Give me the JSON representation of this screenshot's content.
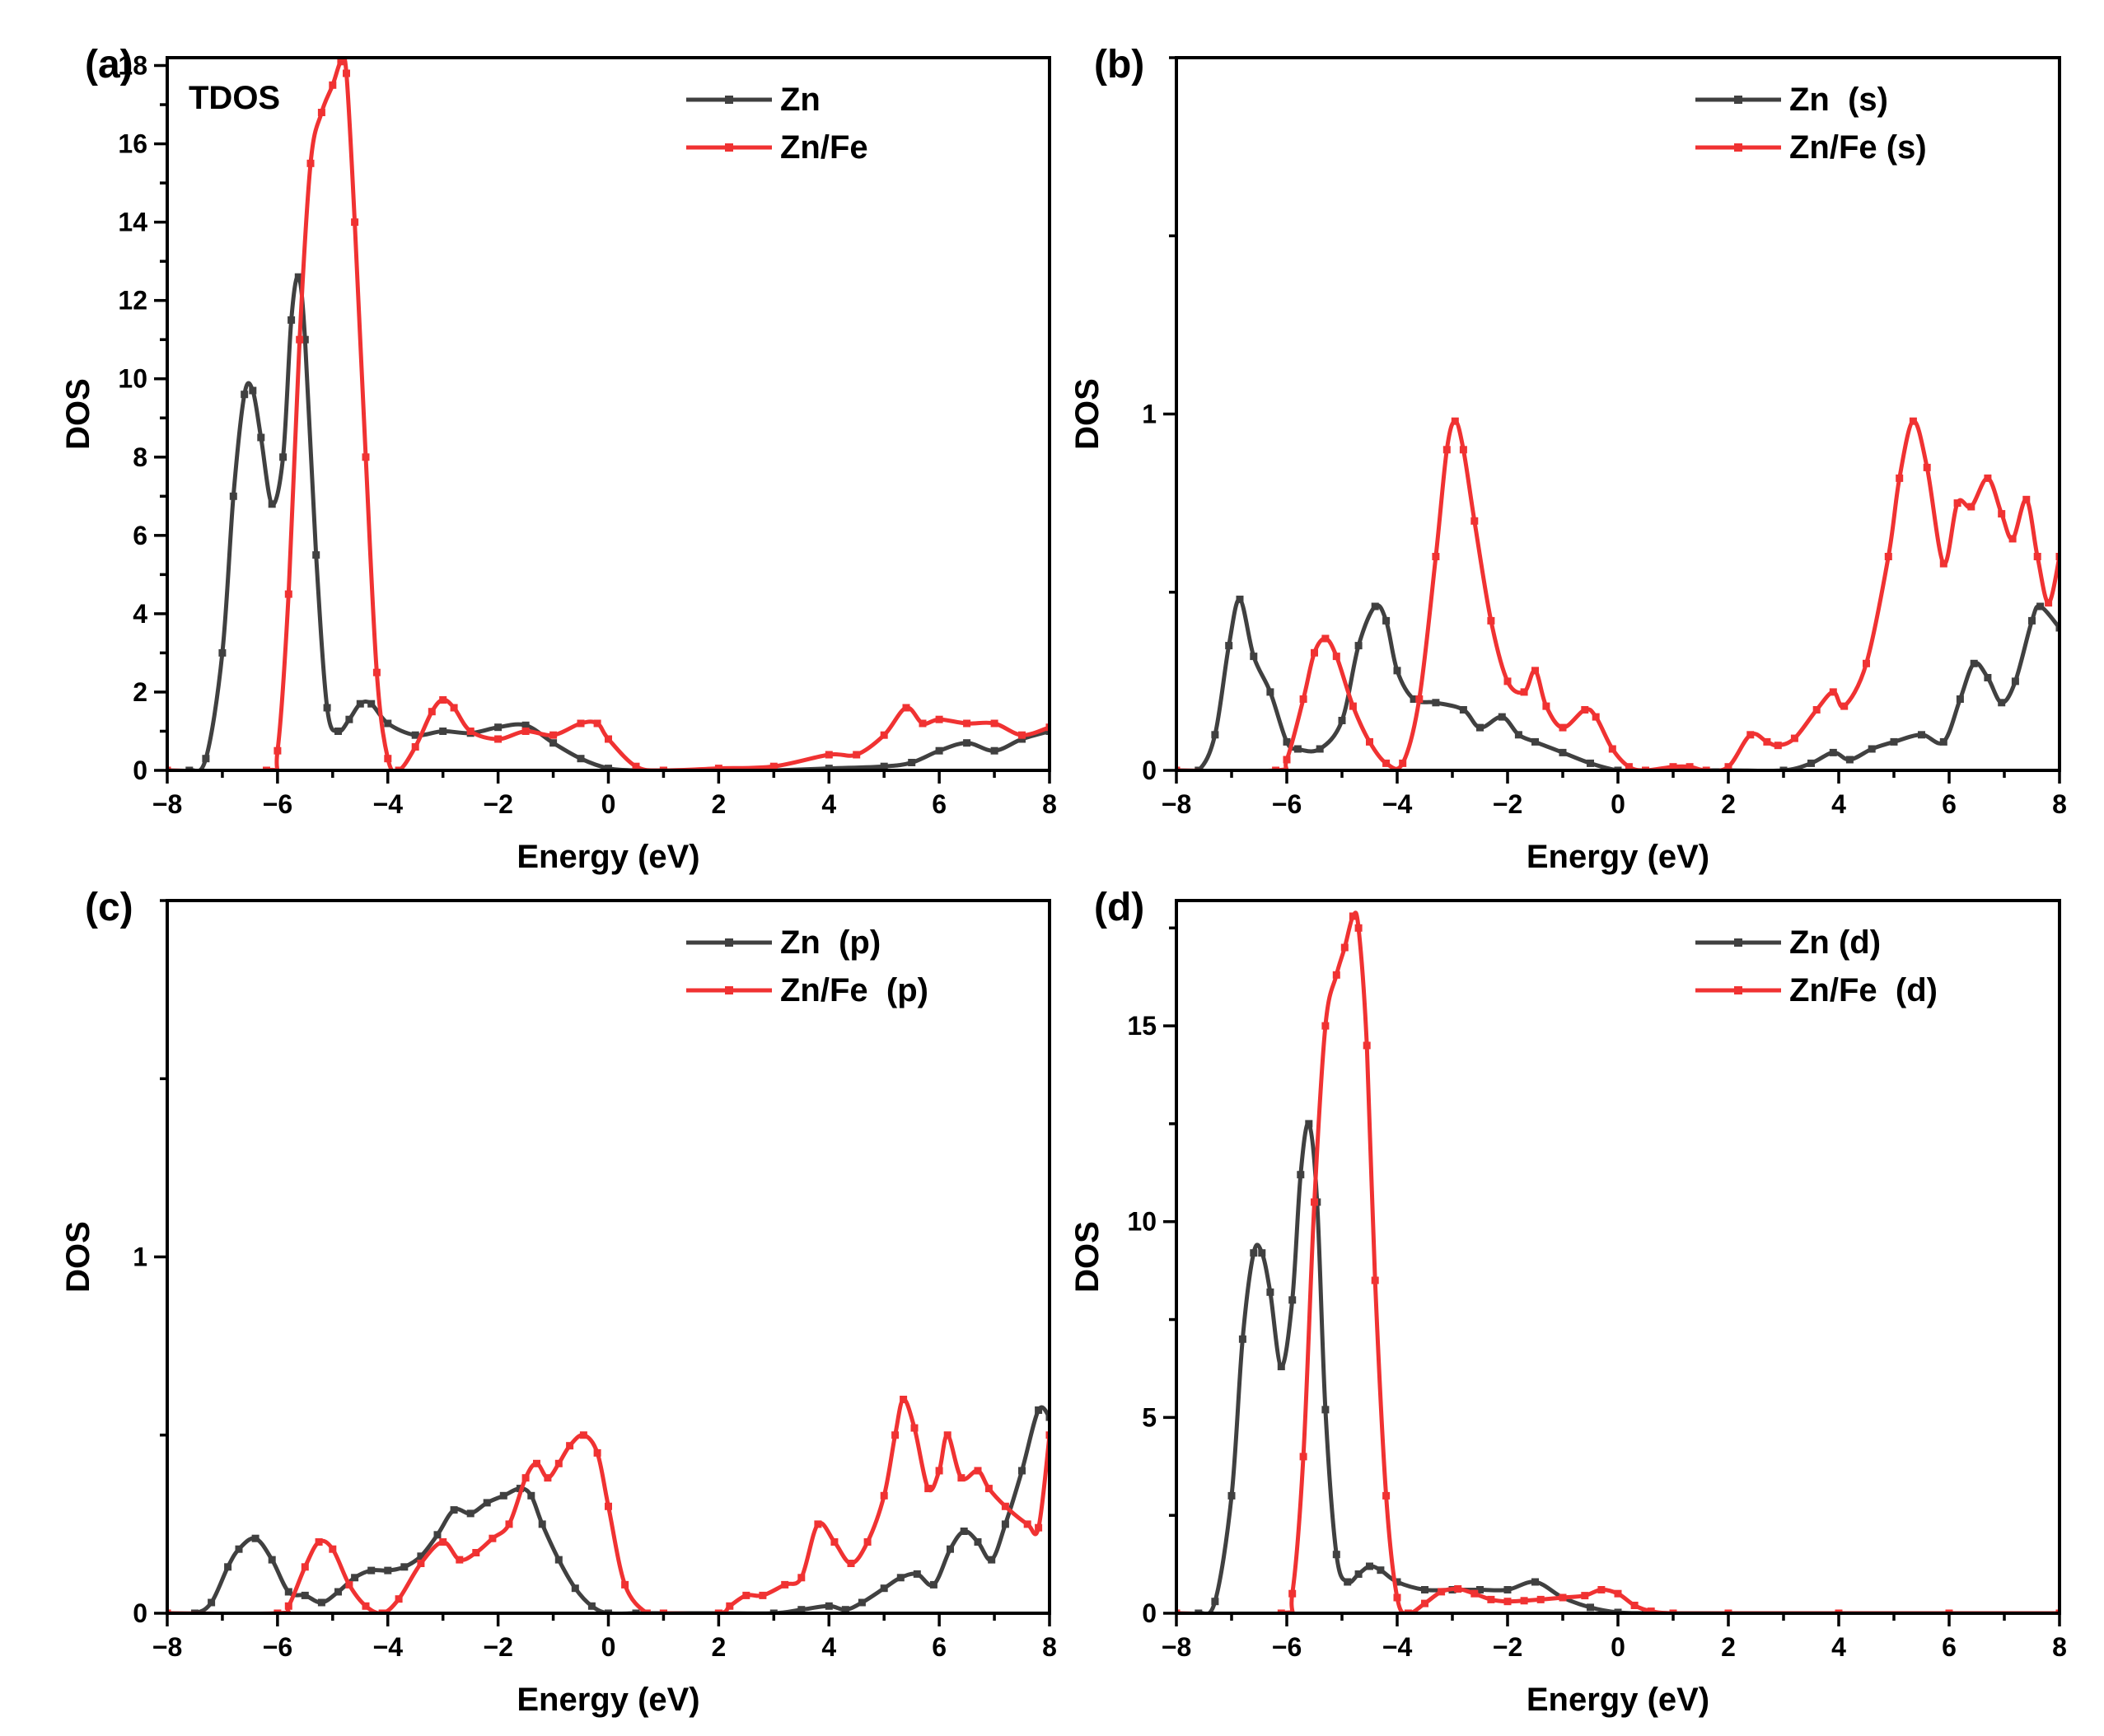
{
  "chart_data": [
    {
      "id": "a",
      "type": "line",
      "panel_label": "(a)",
      "inner_label": "TDOS",
      "xlabel": "Energy (eV)",
      "ylabel": "DOS",
      "xlim": [
        -8,
        8
      ],
      "ylim": [
        0,
        18.2
      ],
      "xticks": [
        -8,
        -6,
        -4,
        -2,
        0,
        2,
        4,
        6,
        8
      ],
      "yticks": [
        0,
        2,
        4,
        6,
        8,
        10,
        12,
        14,
        16,
        18
      ],
      "ytick_labels": [
        "0",
        "2",
        "4",
        "6",
        "8",
        "10",
        "12",
        "14",
        "16",
        "18"
      ],
      "legend_position": "top-right",
      "series": [
        {
          "name": "Zn",
          "color": "#404040",
          "x": [
            -8,
            -7.6,
            -7.3,
            -7.0,
            -6.8,
            -6.6,
            -6.45,
            -6.3,
            -6.1,
            -5.9,
            -5.75,
            -5.62,
            -5.5,
            -5.3,
            -5.1,
            -4.9,
            -4.7,
            -4.5,
            -4.3,
            -4.0,
            -3.5,
            -3.0,
            -2.5,
            -2.0,
            -1.5,
            -1.0,
            -0.5,
            0,
            0.5,
            1,
            2,
            3,
            4,
            5,
            5.5,
            6,
            6.5,
            7,
            7.5,
            8
          ],
          "y": [
            0,
            0,
            0.3,
            3.0,
            7.0,
            9.6,
            9.7,
            8.5,
            6.8,
            8.0,
            11.5,
            12.6,
            11.0,
            5.5,
            1.6,
            1.0,
            1.3,
            1.7,
            1.7,
            1.2,
            0.9,
            1.0,
            0.95,
            1.1,
            1.15,
            0.7,
            0.3,
            0.05,
            0,
            0,
            0,
            0,
            0.05,
            0.1,
            0.2,
            0.5,
            0.7,
            0.5,
            0.8,
            1.0
          ]
        },
        {
          "name": "Zn/Fe",
          "color": "#f03232",
          "x": [
            -8,
            -6.2,
            -6.0,
            -5.8,
            -5.6,
            -5.4,
            -5.2,
            -5.0,
            -4.85,
            -4.75,
            -4.6,
            -4.4,
            -4.2,
            -4.0,
            -3.8,
            -3.5,
            -3.2,
            -3.0,
            -2.8,
            -2.5,
            -2.0,
            -1.5,
            -1.0,
            -0.5,
            -0.2,
            0,
            0.5,
            1,
            2,
            3,
            4,
            4.5,
            5.0,
            5.4,
            5.7,
            6.0,
            6.5,
            7.0,
            7.5,
            8
          ],
          "y": [
            0,
            0,
            0.5,
            4.5,
            11.0,
            15.5,
            16.8,
            17.5,
            18.1,
            17.8,
            14.0,
            8.0,
            2.5,
            0.3,
            0,
            0.6,
            1.5,
            1.8,
            1.6,
            1.0,
            0.8,
            1.0,
            0.9,
            1.2,
            1.2,
            0.8,
            0.1,
            0,
            0.05,
            0.1,
            0.4,
            0.4,
            0.9,
            1.6,
            1.2,
            1.3,
            1.2,
            1.2,
            0.9,
            1.1
          ]
        }
      ]
    },
    {
      "id": "b",
      "type": "line",
      "panel_label": "(b)",
      "inner_label": "",
      "xlabel": "Energy (eV)",
      "ylabel": "DOS",
      "xlim": [
        -8,
        8
      ],
      "ylim": [
        0,
        2.0
      ],
      "xticks": [
        -8,
        -6,
        -4,
        -2,
        0,
        2,
        4,
        6,
        8
      ],
      "yticks": [
        0,
        1
      ],
      "ytick_labels": [
        "0",
        "1"
      ],
      "legend_position": "top-right",
      "series": [
        {
          "name": "Zn  (s)",
          "color": "#404040",
          "x": [
            -8,
            -7.6,
            -7.3,
            -7.05,
            -6.85,
            -6.6,
            -6.3,
            -6.0,
            -5.8,
            -5.4,
            -5.0,
            -4.7,
            -4.4,
            -4.2,
            -4.0,
            -3.7,
            -3.3,
            -2.8,
            -2.5,
            -2.1,
            -1.8,
            -1.5,
            -1.0,
            -0.5,
            0,
            0.5,
            1,
            2,
            3,
            3.5,
            3.9,
            4.2,
            4.6,
            5.0,
            5.5,
            5.9,
            6.2,
            6.45,
            6.7,
            6.95,
            7.2,
            7.5,
            7.65,
            8
          ],
          "y": [
            0,
            0,
            0.1,
            0.35,
            0.48,
            0.32,
            0.22,
            0.08,
            0.06,
            0.06,
            0.14,
            0.35,
            0.46,
            0.42,
            0.28,
            0.2,
            0.19,
            0.17,
            0.12,
            0.15,
            0.1,
            0.08,
            0.05,
            0.02,
            0,
            0,
            0,
            0,
            0,
            0.02,
            0.05,
            0.03,
            0.06,
            0.08,
            0.1,
            0.08,
            0.2,
            0.3,
            0.26,
            0.19,
            0.25,
            0.42,
            0.46,
            0.4
          ]
        },
        {
          "name": "Zn/Fe (s)",
          "color": "#f03232",
          "x": [
            -8,
            -6.2,
            -6.0,
            -5.7,
            -5.5,
            -5.3,
            -5.1,
            -4.8,
            -4.5,
            -4.2,
            -3.9,
            -3.6,
            -3.3,
            -3.1,
            -2.95,
            -2.8,
            -2.6,
            -2.3,
            -2.0,
            -1.7,
            -1.5,
            -1.3,
            -1.0,
            -0.6,
            -0.4,
            -0.1,
            0.2,
            0.5,
            1.0,
            1.3,
            1.6,
            2.0,
            2.4,
            2.7,
            2.9,
            3.2,
            3.6,
            3.9,
            4.1,
            4.5,
            4.9,
            5.1,
            5.35,
            5.6,
            5.9,
            6.15,
            6.4,
            6.7,
            6.95,
            7.15,
            7.4,
            7.6,
            7.8,
            8
          ],
          "y": [
            0,
            0,
            0.03,
            0.2,
            0.33,
            0.37,
            0.32,
            0.18,
            0.08,
            0.02,
            0.02,
            0.2,
            0.6,
            0.9,
            0.98,
            0.9,
            0.7,
            0.42,
            0.25,
            0.22,
            0.28,
            0.18,
            0.12,
            0.17,
            0.15,
            0.06,
            0.01,
            0,
            0.01,
            0.01,
            0,
            0.01,
            0.1,
            0.08,
            0.07,
            0.09,
            0.17,
            0.22,
            0.18,
            0.3,
            0.6,
            0.82,
            0.98,
            0.85,
            0.58,
            0.75,
            0.74,
            0.82,
            0.72,
            0.65,
            0.76,
            0.6,
            0.47,
            0.6
          ]
        }
      ]
    },
    {
      "id": "c",
      "type": "line",
      "panel_label": "(c)",
      "inner_label": "",
      "xlabel": "Energy (eV)",
      "ylabel": "DOS",
      "xlim": [
        -8,
        8
      ],
      "ylim": [
        0,
        2.0
      ],
      "xticks": [
        -8,
        -6,
        -4,
        -2,
        0,
        2,
        4,
        6,
        8
      ],
      "yticks": [
        0,
        1
      ],
      "ytick_labels": [
        "0",
        "1"
      ],
      "legend_position": "top-right",
      "series": [
        {
          "name": "Zn  (p)",
          "color": "#404040",
          "x": [
            -8,
            -7.5,
            -7.2,
            -6.9,
            -6.7,
            -6.4,
            -6.1,
            -5.8,
            -5.5,
            -5.2,
            -4.9,
            -4.6,
            -4.3,
            -4.0,
            -3.7,
            -3.4,
            -3.1,
            -2.8,
            -2.5,
            -2.2,
            -1.9,
            -1.6,
            -1.4,
            -1.2,
            -0.9,
            -0.6,
            -0.3,
            0,
            0.5,
            1,
            2,
            3,
            3.5,
            4.0,
            4.3,
            4.6,
            5.0,
            5.3,
            5.6,
            5.9,
            6.2,
            6.45,
            6.7,
            6.95,
            7.2,
            7.5,
            7.8,
            8
          ],
          "y": [
            0,
            0,
            0.03,
            0.13,
            0.18,
            0.21,
            0.15,
            0.06,
            0.05,
            0.03,
            0.06,
            0.1,
            0.12,
            0.12,
            0.13,
            0.16,
            0.22,
            0.29,
            0.28,
            0.31,
            0.33,
            0.35,
            0.33,
            0.25,
            0.15,
            0.07,
            0.02,
            0,
            0,
            0,
            0,
            0,
            0.01,
            0.02,
            0.01,
            0.03,
            0.07,
            0.1,
            0.11,
            0.08,
            0.18,
            0.23,
            0.2,
            0.15,
            0.25,
            0.4,
            0.57,
            0.55
          ]
        },
        {
          "name": "Zn/Fe  (p)",
          "color": "#f03232",
          "x": [
            -8,
            -6.0,
            -5.8,
            -5.5,
            -5.25,
            -5.0,
            -4.7,
            -4.4,
            -4.1,
            -3.8,
            -3.4,
            -3.0,
            -2.7,
            -2.4,
            -2.1,
            -1.8,
            -1.5,
            -1.3,
            -1.1,
            -0.9,
            -0.7,
            -0.45,
            -0.2,
            0,
            0.3,
            0.7,
            1.0,
            2.0,
            2.2,
            2.5,
            2.8,
            3.2,
            3.5,
            3.8,
            4.1,
            4.4,
            4.7,
            5.0,
            5.2,
            5.35,
            5.55,
            5.8,
            6.0,
            6.15,
            6.4,
            6.7,
            6.9,
            7.2,
            7.6,
            7.8,
            8
          ],
          "y": [
            0,
            0,
            0.02,
            0.13,
            0.2,
            0.18,
            0.08,
            0.02,
            0,
            0.04,
            0.14,
            0.2,
            0.15,
            0.17,
            0.21,
            0.25,
            0.38,
            0.42,
            0.38,
            0.42,
            0.47,
            0.5,
            0.45,
            0.3,
            0.08,
            0,
            0,
            0,
            0.02,
            0.05,
            0.05,
            0.08,
            0.1,
            0.25,
            0.2,
            0.14,
            0.2,
            0.33,
            0.5,
            0.6,
            0.52,
            0.35,
            0.4,
            0.5,
            0.38,
            0.4,
            0.35,
            0.3,
            0.25,
            0.24,
            0.5
          ]
        }
      ]
    },
    {
      "id": "d",
      "type": "line",
      "panel_label": "(d)",
      "inner_label": "",
      "xlabel": "Energy (eV)",
      "ylabel": "DOS",
      "xlim": [
        -8,
        8
      ],
      "ylim": [
        0,
        18.2
      ],
      "xticks": [
        -8,
        -6,
        -4,
        -2,
        0,
        2,
        4,
        6,
        8
      ],
      "yticks": [
        0,
        5,
        10,
        15
      ],
      "ytick_labels": [
        "0",
        "5",
        "10",
        "15"
      ],
      "legend_position": "top-right",
      "series": [
        {
          "name": "Zn (d)",
          "color": "#404040",
          "x": [
            -8,
            -7.6,
            -7.3,
            -7.0,
            -6.8,
            -6.6,
            -6.45,
            -6.3,
            -6.1,
            -5.9,
            -5.75,
            -5.6,
            -5.45,
            -5.3,
            -5.1,
            -4.9,
            -4.7,
            -4.5,
            -4.3,
            -4.0,
            -3.5,
            -3.0,
            -2.5,
            -2.0,
            -1.5,
            -1.0,
            -0.5,
            0,
            0.5,
            1,
            2,
            4,
            6,
            8
          ],
          "y": [
            0,
            0,
            0.3,
            3.0,
            7.0,
            9.2,
            9.2,
            8.2,
            6.3,
            8.0,
            11.2,
            12.5,
            10.5,
            5.2,
            1.5,
            0.8,
            1.0,
            1.2,
            1.1,
            0.8,
            0.6,
            0.6,
            0.6,
            0.6,
            0.8,
            0.4,
            0.15,
            0.02,
            0,
            0,
            0,
            0,
            0,
            0
          ]
        },
        {
          "name": "Zn/Fe  (d)",
          "color": "#f03232",
          "x": [
            -8,
            -6.1,
            -5.9,
            -5.7,
            -5.5,
            -5.3,
            -5.1,
            -4.95,
            -4.8,
            -4.7,
            -4.55,
            -4.4,
            -4.2,
            -4.0,
            -3.8,
            -3.5,
            -3.2,
            -2.9,
            -2.6,
            -2.3,
            -2.0,
            -1.7,
            -1.4,
            -1.0,
            -0.6,
            -0.3,
            0,
            0.3,
            0.6,
            1.0,
            2,
            4,
            6,
            8
          ],
          "y": [
            0,
            0,
            0.5,
            4.0,
            10.5,
            15.0,
            16.3,
            17.0,
            17.8,
            17.5,
            14.5,
            8.5,
            3.0,
            0.4,
            0,
            0.25,
            0.55,
            0.62,
            0.5,
            0.35,
            0.3,
            0.32,
            0.35,
            0.4,
            0.45,
            0.6,
            0.5,
            0.2,
            0.05,
            0,
            0,
            0,
            0,
            0
          ]
        }
      ]
    }
  ]
}
